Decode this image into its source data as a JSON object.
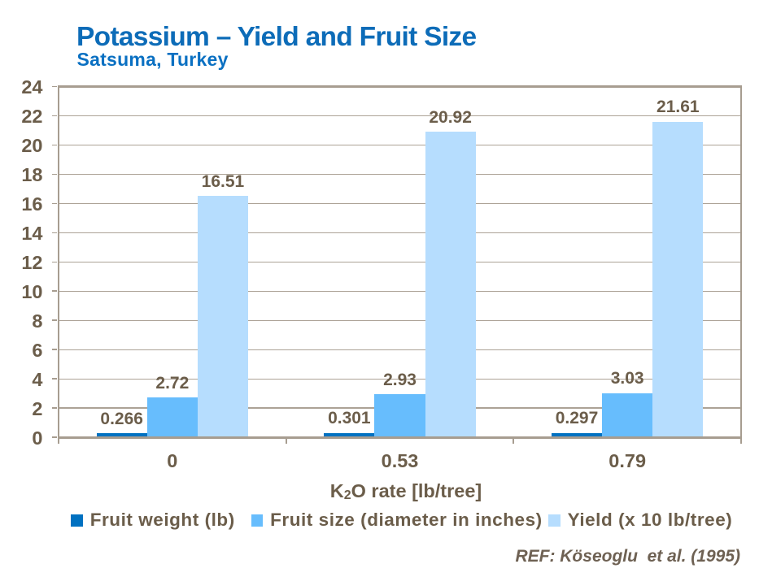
{
  "chart_data": {
    "type": "bar",
    "title": "Potassium – Yield and Fruit Size",
    "subtitle": "Satsuma, Turkey",
    "categories": [
      "0",
      "0.53",
      "0.79"
    ],
    "series": [
      {
        "name": "Fruit weight (lb)",
        "values": [
          0.266,
          0.301,
          0.297
        ],
        "color": "#0071C1"
      },
      {
        "name": "Fruit size (diameter in inches)",
        "values": [
          2.72,
          2.93,
          3.03
        ],
        "color": "#67BDFD"
      },
      {
        "name": "Yield (x 10 lb/tree)",
        "values": [
          16.51,
          20.92,
          21.61
        ],
        "color": "#B6DDFE"
      }
    ],
    "value_labels": [
      [
        "0.266",
        "2.72",
        "16.51"
      ],
      [
        "0.301",
        "2.93",
        "20.92"
      ],
      [
        "0.297",
        "3.03",
        "21.61"
      ]
    ],
    "xlabel": "K2O rate [lb/tree]",
    "xlabel_parts": {
      "pre": "K",
      "sub": "2",
      "post": "O rate [lb/tree]"
    },
    "ylabel": "",
    "ylim": [
      0,
      24
    ],
    "ytick_step": 2,
    "yticks": [
      0,
      2,
      4,
      6,
      8,
      10,
      12,
      14,
      16,
      18,
      20,
      22,
      24
    ],
    "grid": true,
    "legend_position": "bottom",
    "footnote": "REF: Köseoglu  et al. (1995)",
    "style": {
      "background": "#FFFFFF",
      "title_color": "#0D6CB8",
      "subtitle_color": "#0A70C2",
      "text_color": "#6B5D4A",
      "footnote_color": "#6E6153",
      "axis_color": "#A79D90",
      "grid_color": "#ACA296"
    }
  }
}
